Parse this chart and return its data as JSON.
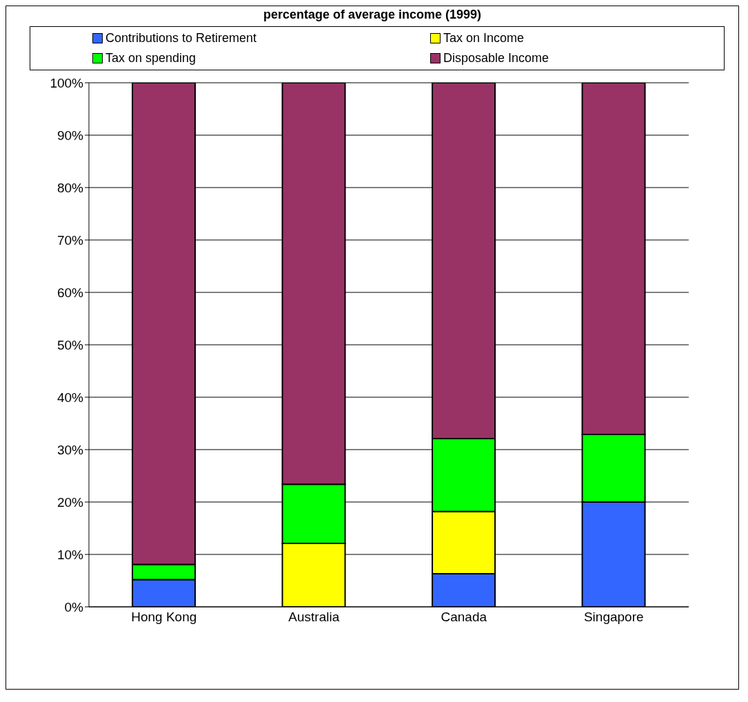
{
  "chart_data": {
    "type": "bar",
    "title": "percentage of average income (1999)",
    "categories": [
      "Hong Kong",
      "Australia",
      "Canada",
      "Singapore"
    ],
    "stacked": true,
    "series": [
      {
        "name": "Contributions to Retirement",
        "color": "#3366ff",
        "values": [
          5.2,
          0,
          6.3,
          20.0
        ]
      },
      {
        "name": "Tax on Income",
        "color": "#ffff00",
        "values": [
          0,
          12.1,
          11.9,
          0
        ]
      },
      {
        "name": "Tax on spending",
        "color": "#00ff00",
        "values": [
          2.9,
          11.3,
          13.9,
          12.9
        ]
      },
      {
        "name": "Disposable Income",
        "color": "#993366",
        "values": [
          91.9,
          76.6,
          67.9,
          67.1
        ]
      }
    ],
    "ylim": [
      0,
      100
    ],
    "yticks": [
      {
        "value": 0,
        "label": "0%"
      },
      {
        "value": 10,
        "label": "10%"
      },
      {
        "value": 20,
        "label": "20%"
      },
      {
        "value": 30,
        "label": "30%"
      },
      {
        "value": 40,
        "label": "40%"
      },
      {
        "value": 50,
        "label": "50%"
      },
      {
        "value": 60,
        "label": "60%"
      },
      {
        "value": 70,
        "label": "70%"
      },
      {
        "value": 80,
        "label": "80%"
      },
      {
        "value": 90,
        "label": "90%"
      },
      {
        "value": 100,
        "label": "100%"
      }
    ],
    "grid": "y",
    "legend": "top"
  }
}
